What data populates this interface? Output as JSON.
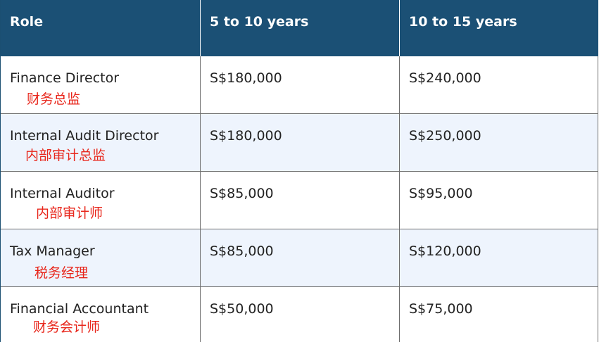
{
  "table": {
    "headers": [
      "Role",
      "5 to 10 years",
      "10 to 15 years"
    ],
    "rows": [
      {
        "role_en": "Finance Director",
        "role_cn": "财务总监",
        "five_to_ten": "S$180,000",
        "ten_to_fifteen": "S$240,000"
      },
      {
        "role_en": "Internal Audit Director",
        "role_cn": "内部审计总监",
        "five_to_ten": "S$180,000",
        "ten_to_fifteen": "S$250,000"
      },
      {
        "role_en": "Internal Auditor",
        "role_cn": "内部审计师",
        "five_to_ten": "S$85,000",
        "ten_to_fifteen": "S$95,000"
      },
      {
        "role_en": "Tax Manager",
        "role_cn": "税务经理",
        "five_to_ten": "S$85,000",
        "ten_to_fifteen": "S$120,000"
      },
      {
        "role_en": "Financial Accountant",
        "role_cn": "财务会计师",
        "five_to_ten": "S$50,000",
        "ten_to_fifteen": "S$75,000"
      }
    ]
  },
  "colors": {
    "header_bg": "#1b5075",
    "header_text": "#ffffff",
    "alt_row_bg": "#eef4fd",
    "chinese_text": "#e8261b",
    "body_text": "#222222"
  }
}
